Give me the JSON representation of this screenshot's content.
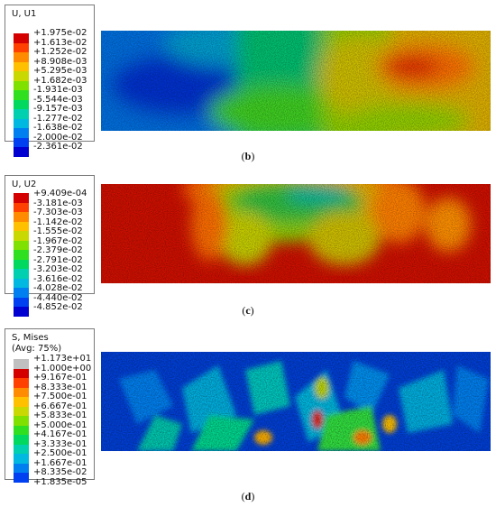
{
  "panels": [
    {
      "id": "b",
      "legend_title": "U, U1",
      "labels": [
        "+1.975e-02",
        "+1.613e-02",
        "+1.252e-02",
        "+8.908e-03",
        "+5.295e-03",
        "+1.682e-03",
        "-1.931e-03",
        "-5.544e-03",
        "-9.157e-03",
        "-1.277e-02",
        "-1.638e-02",
        "-2.000e-02",
        "-2.361e-02"
      ],
      "swatch_colors": [
        "#d40000",
        "#ff4000",
        "#ff8c00",
        "#ffc000",
        "#c8d800",
        "#80e000",
        "#30e020",
        "#00d860",
        "#00d0b0",
        "#00b8e0",
        "#0080f0",
        "#0040f0",
        "#0000d0"
      ],
      "caption": "b"
    },
    {
      "id": "c",
      "legend_title": "U, U2",
      "labels": [
        "+9.409e-04",
        "-3.181e-03",
        "-7.303e-03",
        "-1.142e-02",
        "-1.555e-02",
        "-1.967e-02",
        "-2.379e-02",
        "-2.791e-02",
        "-3.203e-02",
        "-3.616e-02",
        "-4.028e-02",
        "-4.440e-02",
        "-4.852e-02"
      ],
      "swatch_colors": [
        "#d40000",
        "#ff4000",
        "#ff8c00",
        "#ffc000",
        "#c8d800",
        "#80e000",
        "#30e020",
        "#00d860",
        "#00d0b0",
        "#00b8e0",
        "#0080f0",
        "#0040f0",
        "#0000d0"
      ],
      "caption": "c"
    },
    {
      "id": "d",
      "legend_title": "S, Mises\n(Avg: 75%)",
      "labels": [
        "+1.173e+01",
        "+1.000e+00",
        "+9.167e-01",
        "+8.333e-01",
        "+7.500e-01",
        "+6.667e-01",
        "+5.833e-01",
        "+5.000e-01",
        "+4.167e-01",
        "+3.333e-01",
        "+2.500e-01",
        "+1.667e-01",
        "+8.335e-02",
        "+1.835e-05"
      ],
      "swatch_colors": [
        "#c0c0c0",
        "#d40000",
        "#ff4000",
        "#ff8c00",
        "#ffc000",
        "#c8d800",
        "#80e000",
        "#30e020",
        "#00d860",
        "#00d0b0",
        "#00b8e0",
        "#0080f0",
        "#0040f0",
        "#0000d0"
      ],
      "caption": "d"
    }
  ]
}
